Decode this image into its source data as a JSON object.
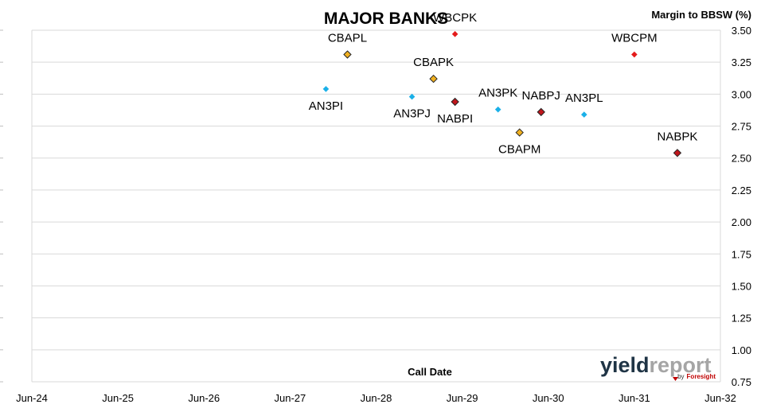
{
  "chart_data": {
    "type": "scatter",
    "title": "MAJOR BANKS",
    "xlabel": "Call Date",
    "ylabel": "Margin to BBSW (%)",
    "x_ticks": [
      "Jun-24",
      "Jun-25",
      "Jun-26",
      "Jun-27",
      "Jun-28",
      "Jun-29",
      "Jun-30",
      "Jun-31",
      "Jun-32"
    ],
    "y_ticks": [
      "0.75",
      "1.00",
      "1.25",
      "1.50",
      "1.75",
      "2.00",
      "2.25",
      "2.50",
      "2.75",
      "3.00",
      "3.25",
      "3.50"
    ],
    "xlim": [
      "2024-06",
      "2032-06"
    ],
    "ylim": [
      0.75,
      3.5
    ],
    "grid": "horizontal",
    "points": [
      {
        "label": "CBAPL",
        "x": "2028-02",
        "y": 3.31,
        "color": "#f0b020",
        "outlined": true,
        "label_pos": "above"
      },
      {
        "label": "AN3PI",
        "x": "2027-11",
        "y": 3.04,
        "color": "#1ab0e8",
        "outlined": false,
        "label_pos": "below"
      },
      {
        "label": "CBAPK",
        "x": "2029-02",
        "y": 3.12,
        "color": "#f0b020",
        "outlined": true,
        "label_pos": "above"
      },
      {
        "label": "AN3PJ",
        "x": "2028-11",
        "y": 2.98,
        "color": "#1ab0e8",
        "outlined": false,
        "label_pos": "below"
      },
      {
        "label": "WBCPK",
        "x": "2029-05",
        "y": 3.47,
        "color": "#e41b1b",
        "outlined": false,
        "label_pos": "above"
      },
      {
        "label": "NABPI",
        "x": "2029-05",
        "y": 2.94,
        "color": "#c0161c",
        "outlined": true,
        "label_pos": "below"
      },
      {
        "label": "AN3PK",
        "x": "2029-11",
        "y": 2.88,
        "color": "#1ab0e8",
        "outlined": false,
        "label_pos": "above"
      },
      {
        "label": "CBAPM",
        "x": "2030-02",
        "y": 2.7,
        "color": "#f0b020",
        "outlined": true,
        "label_pos": "below"
      },
      {
        "label": "NABPJ",
        "x": "2030-05",
        "y": 2.86,
        "color": "#c0161c",
        "outlined": true,
        "label_pos": "above"
      },
      {
        "label": "AN3PL",
        "x": "2030-11",
        "y": 2.84,
        "color": "#1ab0e8",
        "outlined": false,
        "label_pos": "above"
      },
      {
        "label": "WBCPM",
        "x": "2031-06",
        "y": 3.31,
        "color": "#e41b1b",
        "outlined": false,
        "label_pos": "above"
      },
      {
        "label": "NABPK",
        "x": "2032-00",
        "y": 2.54,
        "color": "#c0161c",
        "outlined": true,
        "label_pos": "above"
      }
    ]
  },
  "logo": {
    "part_a": "yield",
    "part_b": "report",
    "byline": "by",
    "brand": "Foresight"
  }
}
